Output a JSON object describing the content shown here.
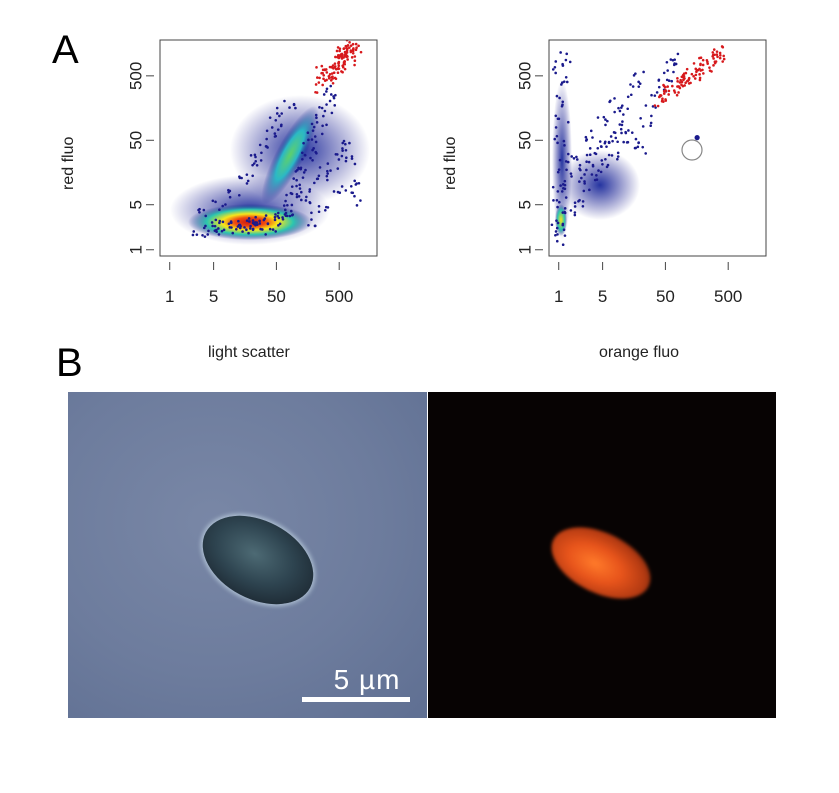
{
  "figure": {
    "panel_a_label": "A",
    "panel_b_label": "B",
    "scale_bar_label": "5 µm"
  },
  "chart_data": [
    {
      "type": "scatter",
      "title": "",
      "xlabel": "light scatter",
      "ylabel": "red fluo",
      "x_scale": "log",
      "y_scale": "log",
      "x_ticks": [
        1,
        5,
        50,
        500
      ],
      "x_tick_labels": [
        "1",
        "5",
        "50",
        "500"
      ],
      "y_ticks": [
        1,
        5,
        50,
        500
      ],
      "y_tick_labels": [
        "1",
        "5",
        "50",
        "500"
      ],
      "xlim": [
        0.7,
        2000
      ],
      "ylim": [
        0.8,
        1800
      ],
      "grid": false,
      "colors": {
        "density_low": "#1a1a8c",
        "density_mid": "#2bc6b0",
        "density_high": "#f7e61b",
        "density_peak": "#c81414",
        "gated": "#d7191c"
      },
      "series": [
        {
          "population": "density cloud",
          "points": [
            [
              5,
              2
            ],
            [
              6,
              2.3
            ],
            [
              8,
              2.2
            ],
            [
              10,
              2.5
            ],
            [
              12,
              2.1
            ],
            [
              15,
              2.4
            ],
            [
              18,
              2.2
            ],
            [
              20,
              2.6
            ],
            [
              25,
              2.3
            ],
            [
              30,
              2.5
            ],
            [
              35,
              2.2
            ],
            [
              40,
              2.8
            ],
            [
              50,
              2.4
            ],
            [
              60,
              3
            ],
            [
              70,
              3.5
            ],
            [
              80,
              4.5
            ],
            [
              90,
              6
            ],
            [
              100,
              8
            ],
            [
              110,
              11
            ],
            [
              120,
              15
            ],
            [
              130,
              20
            ],
            [
              150,
              28
            ],
            [
              170,
              40
            ],
            [
              200,
              55
            ],
            [
              230,
              80
            ],
            [
              260,
              110
            ],
            [
              300,
              160
            ],
            [
              350,
              220
            ],
            [
              400,
              300
            ],
            [
              3,
              2
            ],
            [
              4,
              2.5
            ],
            [
              3.5,
              3.5
            ],
            [
              6,
              5
            ],
            [
              10,
              8
            ],
            [
              15,
              12
            ],
            [
              20,
              18
            ],
            [
              25,
              25
            ],
            [
              30,
              40
            ],
            [
              40,
              60
            ],
            [
              50,
              90
            ],
            [
              60,
              130
            ],
            [
              80,
              200
            ],
            [
              150,
              6
            ],
            [
              200,
              10
            ],
            [
              300,
              15
            ],
            [
              400,
              20
            ],
            [
              500,
              30
            ],
            [
              600,
              40
            ],
            [
              700,
              25
            ],
            [
              800,
              12
            ],
            [
              900,
              6
            ],
            [
              500,
              8
            ],
            [
              300,
              4
            ],
            [
              200,
              3
            ]
          ]
        },
        {
          "population": "gated (red)",
          "points": [
            [
              300,
              400
            ],
            [
              350,
              500
            ],
            [
              400,
              600
            ],
            [
              450,
              700
            ],
            [
              500,
              800
            ],
            [
              550,
              900
            ],
            [
              600,
              1000
            ],
            [
              650,
              1100
            ],
            [
              700,
              1200
            ],
            [
              750,
              1300
            ],
            [
              320,
              550
            ],
            [
              380,
              450
            ],
            [
              420,
              750
            ],
            [
              480,
              650
            ],
            [
              520,
              950
            ],
            [
              580,
              850
            ],
            [
              620,
              1150
            ],
            [
              680,
              1050
            ],
            [
              720,
              800
            ],
            [
              250,
              350
            ],
            [
              280,
              600
            ],
            [
              800,
              1400
            ],
            [
              850,
              1500
            ],
            [
              900,
              1300
            ]
          ]
        }
      ]
    },
    {
      "type": "scatter",
      "title": "",
      "xlabel": "orange fluo",
      "ylabel": "red fluo",
      "x_scale": "log",
      "y_scale": "log",
      "x_ticks": [
        1,
        5,
        50,
        500
      ],
      "x_tick_labels": [
        "1",
        "5",
        "50",
        "500"
      ],
      "y_ticks": [
        1,
        5,
        50,
        500
      ],
      "y_tick_labels": [
        "1",
        "5",
        "50",
        "500"
      ],
      "xlim": [
        0.7,
        2000
      ],
      "ylim": [
        0.8,
        1800
      ],
      "grid": false,
      "colors": {
        "density_low": "#1a1a8c",
        "density_high": "#f7e61b",
        "gated": "#d7191c",
        "circle": "#888888"
      },
      "series": [
        {
          "population": "blue population",
          "points": [
            [
              1,
              2
            ],
            [
              1,
              5
            ],
            [
              1,
              10
            ],
            [
              1,
              50
            ],
            [
              1,
              200
            ],
            [
              1,
              700
            ],
            [
              1.1,
              1.5
            ],
            [
              1.1,
              3
            ],
            [
              1.1,
              20
            ],
            [
              1.1,
              100
            ],
            [
              1.2,
              400
            ],
            [
              1.2,
              900
            ],
            [
              1.3,
              8
            ],
            [
              1.5,
              30
            ],
            [
              2,
              12
            ],
            [
              2.5,
              20
            ],
            [
              3,
              25
            ],
            [
              4,
              30
            ],
            [
              5,
              40
            ],
            [
              6,
              50
            ],
            [
              8,
              60
            ],
            [
              10,
              80
            ],
            [
              12,
              60
            ],
            [
              15,
              50
            ],
            [
              20,
              40
            ],
            [
              25,
              100
            ],
            [
              30,
              200
            ],
            [
              40,
              350
            ],
            [
              50,
              500
            ],
            [
              60,
              700
            ],
            [
              70,
              900
            ],
            [
              15,
              300
            ],
            [
              20,
              450
            ],
            [
              10,
              150
            ],
            [
              8,
              30
            ],
            [
              6,
              20
            ],
            [
              4,
              15
            ],
            [
              3,
              10
            ],
            [
              2,
              6
            ],
            [
              1.5,
              4
            ],
            [
              5,
              100
            ],
            [
              8,
              200
            ],
            [
              3,
              60
            ]
          ]
        },
        {
          "population": "gated (red)",
          "points": [
            [
              40,
              200
            ],
            [
              50,
              250
            ],
            [
              60,
              300
            ],
            [
              70,
              350
            ],
            [
              80,
              400
            ],
            [
              100,
              450
            ],
            [
              120,
              500
            ],
            [
              150,
              550
            ],
            [
              180,
              650
            ],
            [
              220,
              750
            ],
            [
              260,
              850
            ],
            [
              300,
              950
            ],
            [
              350,
              1050
            ],
            [
              400,
              1150
            ],
            [
              45,
              230
            ],
            [
              55,
              280
            ],
            [
              90,
              420
            ],
            [
              110,
              480
            ],
            [
              140,
              530
            ],
            [
              200,
              700
            ],
            [
              250,
              800
            ]
          ]
        },
        {
          "population": "circled event",
          "points": [
            [
              160,
              55
            ]
          ]
        }
      ]
    }
  ]
}
